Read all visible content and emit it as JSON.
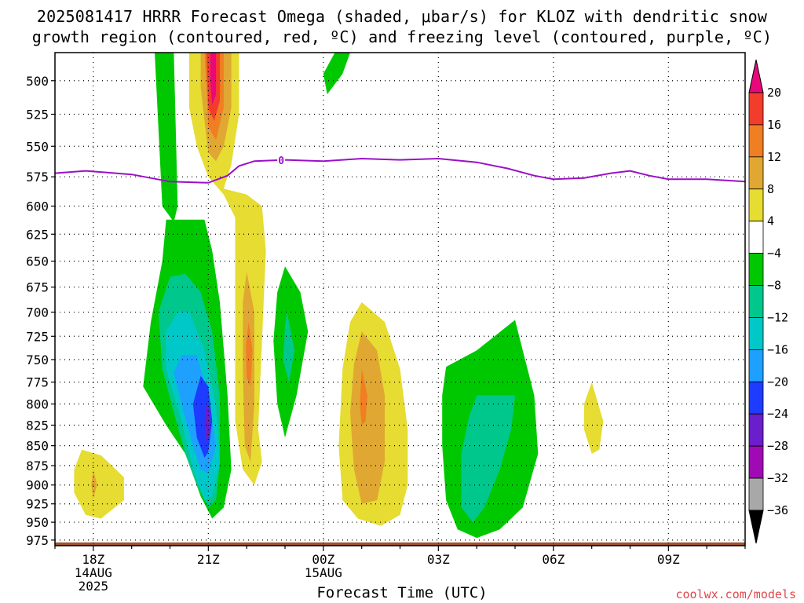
{
  "chart_data": {
    "type": "heatmap",
    "title_line1": "2025081417 HRRR Forecast Omega (shaded, μbar/s) for KLOZ with dendritic snow",
    "title_line2": "growth region (contoured, red, ºC) and freezing level (contoured, purple, ºC)",
    "xlabel": "Forecast Time (UTC)",
    "x_ticks": [
      {
        "label": "18Z",
        "sub1": "14AUG",
        "sub2": "2025",
        "hour": 18
      },
      {
        "label": "21Z",
        "sub1": "",
        "sub2": "",
        "hour": 21
      },
      {
        "label": "00Z",
        "sub1": "15AUG",
        "sub2": "",
        "hour": 24
      },
      {
        "label": "03Z",
        "sub1": "",
        "sub2": "",
        "hour": 27
      },
      {
        "label": "06Z",
        "sub1": "",
        "sub2": "",
        "hour": 30
      },
      {
        "label": "09Z",
        "sub1": "",
        "sub2": "",
        "hour": 33
      }
    ],
    "xlim": [
      17,
      35
    ],
    "y_ticks": [
      500,
      525,
      550,
      575,
      600,
      625,
      650,
      675,
      700,
      725,
      750,
      775,
      800,
      825,
      850,
      875,
      900,
      925,
      950,
      975
    ],
    "ylim": [
      480,
      983
    ],
    "y_scale": "log-pressure",
    "grid": true,
    "colorbar": {
      "levels": [
        "20",
        "16",
        "12",
        "8",
        "4",
        "−4",
        "−8",
        "−12",
        "−16",
        "−20",
        "−24",
        "−28",
        "−32",
        "−36"
      ],
      "colors": [
        "#e8087a",
        "#f23c2c",
        "#f07e22",
        "#e0a832",
        "#e6dc32",
        "#ffffff",
        "#00c800",
        "#00c88c",
        "#00c8c8",
        "#1ea0ff",
        "#1e3cff",
        "#6a1ecc",
        "#a00ab4",
        "#a8a8a8",
        "#000000"
      ]
    },
    "freezing_level": {
      "label": "0",
      "label_hour": 22.9,
      "color": "#9a10c8",
      "points": [
        [
          17,
          572
        ],
        [
          17.8,
          570
        ],
        [
          19,
          573
        ],
        [
          20,
          579
        ],
        [
          21,
          580
        ],
        [
          21.5,
          574
        ],
        [
          21.8,
          566
        ],
        [
          22.2,
          562
        ],
        [
          23,
          561
        ],
        [
          24,
          562
        ],
        [
          25,
          560
        ],
        [
          26,
          561
        ],
        [
          27,
          560
        ],
        [
          28,
          563
        ],
        [
          28.8,
          568
        ],
        [
          29.5,
          574
        ],
        [
          30,
          577
        ],
        [
          30.8,
          576
        ],
        [
          31.5,
          572
        ],
        [
          32,
          570
        ],
        [
          32.5,
          574
        ],
        [
          33,
          577
        ],
        [
          34,
          577
        ],
        [
          35,
          579
        ]
      ]
    },
    "omega_regions": [
      {
        "level": "-4",
        "color": "#00c800",
        "points": [
          [
            19.6,
            480
          ],
          [
            20.1,
            480
          ],
          [
            20.2,
            600
          ],
          [
            20.1,
            614
          ],
          [
            19.8,
            600
          ]
        ]
      },
      {
        "level": "-4",
        "color": "#00c800",
        "points": [
          [
            24.3,
            480
          ],
          [
            24.7,
            480
          ],
          [
            24.5,
            495
          ],
          [
            24.1,
            510
          ],
          [
            24.0,
            495
          ]
        ]
      },
      {
        "level": "-4",
        "color": "#00c800",
        "points": [
          [
            19.9,
            612
          ],
          [
            20.9,
            612
          ],
          [
            21.1,
            640
          ],
          [
            21.3,
            690
          ],
          [
            21.5,
            790
          ],
          [
            21.6,
            880
          ],
          [
            21.4,
            930
          ],
          [
            21.1,
            945
          ],
          [
            20.8,
            915
          ],
          [
            20.4,
            860
          ],
          [
            19.9,
            825
          ],
          [
            19.3,
            780
          ],
          [
            19.5,
            710
          ],
          [
            19.8,
            650
          ]
        ]
      },
      {
        "level": "-8",
        "color": "#00c88c",
        "points": [
          [
            20.0,
            665
          ],
          [
            20.4,
            662
          ],
          [
            20.8,
            680
          ],
          [
            21.1,
            720
          ],
          [
            21.3,
            790
          ],
          [
            21.3,
            870
          ],
          [
            21.2,
            920
          ],
          [
            21.0,
            930
          ],
          [
            20.7,
            900
          ],
          [
            20.4,
            860
          ],
          [
            20.1,
            810
          ],
          [
            19.8,
            760
          ],
          [
            19.7,
            700
          ]
        ]
      },
      {
        "level": "-12",
        "color": "#00c8c8",
        "points": [
          [
            20.2,
            700
          ],
          [
            20.5,
            700
          ],
          [
            20.9,
            740
          ],
          [
            21.2,
            800
          ],
          [
            21.3,
            870
          ],
          [
            21.1,
            915
          ],
          [
            20.9,
            920
          ],
          [
            20.6,
            880
          ],
          [
            20.3,
            820
          ],
          [
            19.9,
            760
          ],
          [
            19.9,
            720
          ]
        ]
      },
      {
        "level": "-16",
        "color": "#1ea0ff",
        "points": [
          [
            20.3,
            745
          ],
          [
            20.7,
            745
          ],
          [
            21.0,
            790
          ],
          [
            21.2,
            850
          ],
          [
            21.0,
            885
          ],
          [
            20.8,
            880
          ],
          [
            20.6,
            850
          ],
          [
            20.3,
            800
          ],
          [
            20.1,
            765
          ]
        ]
      },
      {
        "level": "-20",
        "color": "#1e3cff",
        "points": [
          [
            20.8,
            768
          ],
          [
            21.0,
            780
          ],
          [
            21.1,
            820
          ],
          [
            21.0,
            858
          ],
          [
            20.9,
            865
          ],
          [
            20.7,
            840
          ],
          [
            20.6,
            800
          ]
        ]
      },
      {
        "level": "-24",
        "color": "#6a1ecc",
        "points": [
          [
            20.95,
            800
          ],
          [
            21.05,
            810
          ],
          [
            21.05,
            835
          ],
          [
            20.95,
            845
          ],
          [
            20.9,
            825
          ]
        ]
      },
      {
        "level": "-4",
        "color": "#00c800",
        "points": [
          [
            23.0,
            655
          ],
          [
            23.4,
            680
          ],
          [
            23.6,
            720
          ],
          [
            23.3,
            790
          ],
          [
            23.0,
            840
          ],
          [
            22.8,
            800
          ],
          [
            22.7,
            730
          ],
          [
            22.8,
            680
          ]
        ]
      },
      {
        "level": "-8",
        "color": "#00c88c",
        "points": [
          [
            23.05,
            700
          ],
          [
            23.25,
            740
          ],
          [
            23.1,
            775
          ],
          [
            22.95,
            750
          ],
          [
            23.0,
            715
          ]
        ]
      },
      {
        "level": "-4",
        "color": "#00c800",
        "points": [
          [
            27.2,
            758
          ],
          [
            28.0,
            740
          ],
          [
            29.0,
            708
          ],
          [
            29.2,
            740
          ],
          [
            29.5,
            790
          ],
          [
            29.6,
            860
          ],
          [
            29.2,
            930
          ],
          [
            28.6,
            960
          ],
          [
            28.0,
            972
          ],
          [
            27.5,
            960
          ],
          [
            27.2,
            920
          ],
          [
            27.1,
            850
          ],
          [
            27.1,
            790
          ]
        ]
      },
      {
        "level": "-8",
        "color": "#00c88c",
        "points": [
          [
            28.0,
            790
          ],
          [
            29.0,
            790
          ],
          [
            28.9,
            830
          ],
          [
            28.6,
            880
          ],
          [
            28.2,
            930
          ],
          [
            27.9,
            950
          ],
          [
            27.6,
            930
          ],
          [
            27.6,
            860
          ],
          [
            27.8,
            815
          ]
        ]
      }
    ],
    "omega_positive_regions": [
      {
        "level": "4",
        "color": "#e6dc32",
        "points": [
          [
            20.5,
            480
          ],
          [
            21.8,
            480
          ],
          [
            21.8,
            525
          ],
          [
            21.6,
            565
          ],
          [
            21.4,
            585
          ],
          [
            22.0,
            590
          ],
          [
            22.4,
            600
          ],
          [
            22.5,
            640
          ],
          [
            22.4,
            730
          ],
          [
            22.3,
            830
          ],
          [
            22.4,
            870
          ],
          [
            22.2,
            900
          ],
          [
            21.9,
            880
          ],
          [
            21.7,
            820
          ],
          [
            21.7,
            700
          ],
          [
            21.7,
            610
          ],
          [
            21.4,
            590
          ],
          [
            21.0,
            575
          ],
          [
            20.7,
            550
          ],
          [
            20.5,
            520
          ]
        ]
      },
      {
        "level": "8",
        "color": "#e0a832",
        "points": [
          [
            20.8,
            480
          ],
          [
            21.6,
            480
          ],
          [
            21.6,
            520
          ],
          [
            21.4,
            550
          ],
          [
            21.2,
            562
          ],
          [
            21.0,
            555
          ],
          [
            20.9,
            530
          ],
          [
            20.8,
            505
          ]
        ]
      },
      {
        "level": "12",
        "color": "#f07e22",
        "points": [
          [
            20.9,
            480
          ],
          [
            21.4,
            480
          ],
          [
            21.4,
            520
          ],
          [
            21.2,
            545
          ],
          [
            21.0,
            535
          ],
          [
            20.95,
            505
          ]
        ]
      },
      {
        "level": "16",
        "color": "#f23c2c",
        "points": [
          [
            20.95,
            480
          ],
          [
            21.3,
            480
          ],
          [
            21.3,
            515
          ],
          [
            21.15,
            530
          ],
          [
            21.0,
            520
          ]
        ]
      },
      {
        "level": "20",
        "color": "#e8087a",
        "points": [
          [
            21.05,
            480
          ],
          [
            21.2,
            480
          ],
          [
            21.2,
            510
          ],
          [
            21.1,
            518
          ],
          [
            21.05,
            500
          ]
        ]
      },
      {
        "level": "8",
        "color": "#e0a832",
        "points": [
          [
            22.0,
            660
          ],
          [
            22.2,
            700
          ],
          [
            22.2,
            800
          ],
          [
            22.1,
            870
          ],
          [
            21.95,
            850
          ],
          [
            21.9,
            760
          ],
          [
            21.9,
            690
          ]
        ]
      },
      {
        "level": "12",
        "color": "#f07e22",
        "points": [
          [
            22.05,
            710
          ],
          [
            22.15,
            740
          ],
          [
            22.1,
            780
          ],
          [
            22.0,
            770
          ],
          [
            21.98,
            735
          ]
        ]
      },
      {
        "level": "4",
        "color": "#e6dc32",
        "points": [
          [
            25.0,
            690
          ],
          [
            25.6,
            710
          ],
          [
            26.0,
            760
          ],
          [
            26.2,
            830
          ],
          [
            26.2,
            900
          ],
          [
            26.0,
            940
          ],
          [
            25.5,
            955
          ],
          [
            24.9,
            945
          ],
          [
            24.5,
            920
          ],
          [
            24.4,
            850
          ],
          [
            24.5,
            760
          ],
          [
            24.7,
            710
          ]
        ]
      },
      {
        "level": "8",
        "color": "#e0a832",
        "points": [
          [
            25.0,
            720
          ],
          [
            25.4,
            740
          ],
          [
            25.6,
            790
          ],
          [
            25.6,
            870
          ],
          [
            25.4,
            920
          ],
          [
            25.0,
            925
          ],
          [
            24.8,
            880
          ],
          [
            24.7,
            810
          ],
          [
            24.8,
            755
          ]
        ]
      },
      {
        "level": "12",
        "color": "#f07e22",
        "points": [
          [
            25.0,
            760
          ],
          [
            25.15,
            790
          ],
          [
            25.1,
            820
          ],
          [
            25.0,
            825
          ],
          [
            24.95,
            800
          ]
        ]
      },
      {
        "level": "4",
        "color": "#e6dc32",
        "points": [
          [
            17.7,
            855
          ],
          [
            18.2,
            862
          ],
          [
            18.8,
            890
          ],
          [
            18.8,
            920
          ],
          [
            18.2,
            945
          ],
          [
            17.8,
            940
          ],
          [
            17.5,
            910
          ],
          [
            17.5,
            880
          ]
        ]
      },
      {
        "level": "8",
        "color": "#e0a832",
        "points": [
          [
            18.0,
            880
          ],
          [
            18.1,
            900
          ],
          [
            18.0,
            918
          ],
          [
            17.95,
            900
          ]
        ]
      },
      {
        "level": "4",
        "color": "#e6dc32",
        "points": [
          [
            31.0,
            775
          ],
          [
            31.3,
            820
          ],
          [
            31.2,
            855
          ],
          [
            31.0,
            860
          ],
          [
            30.8,
            830
          ],
          [
            30.8,
            800
          ]
        ]
      }
    ],
    "ground": {
      "color": "#a0522d",
      "pressure_top": 975
    }
  }
}
